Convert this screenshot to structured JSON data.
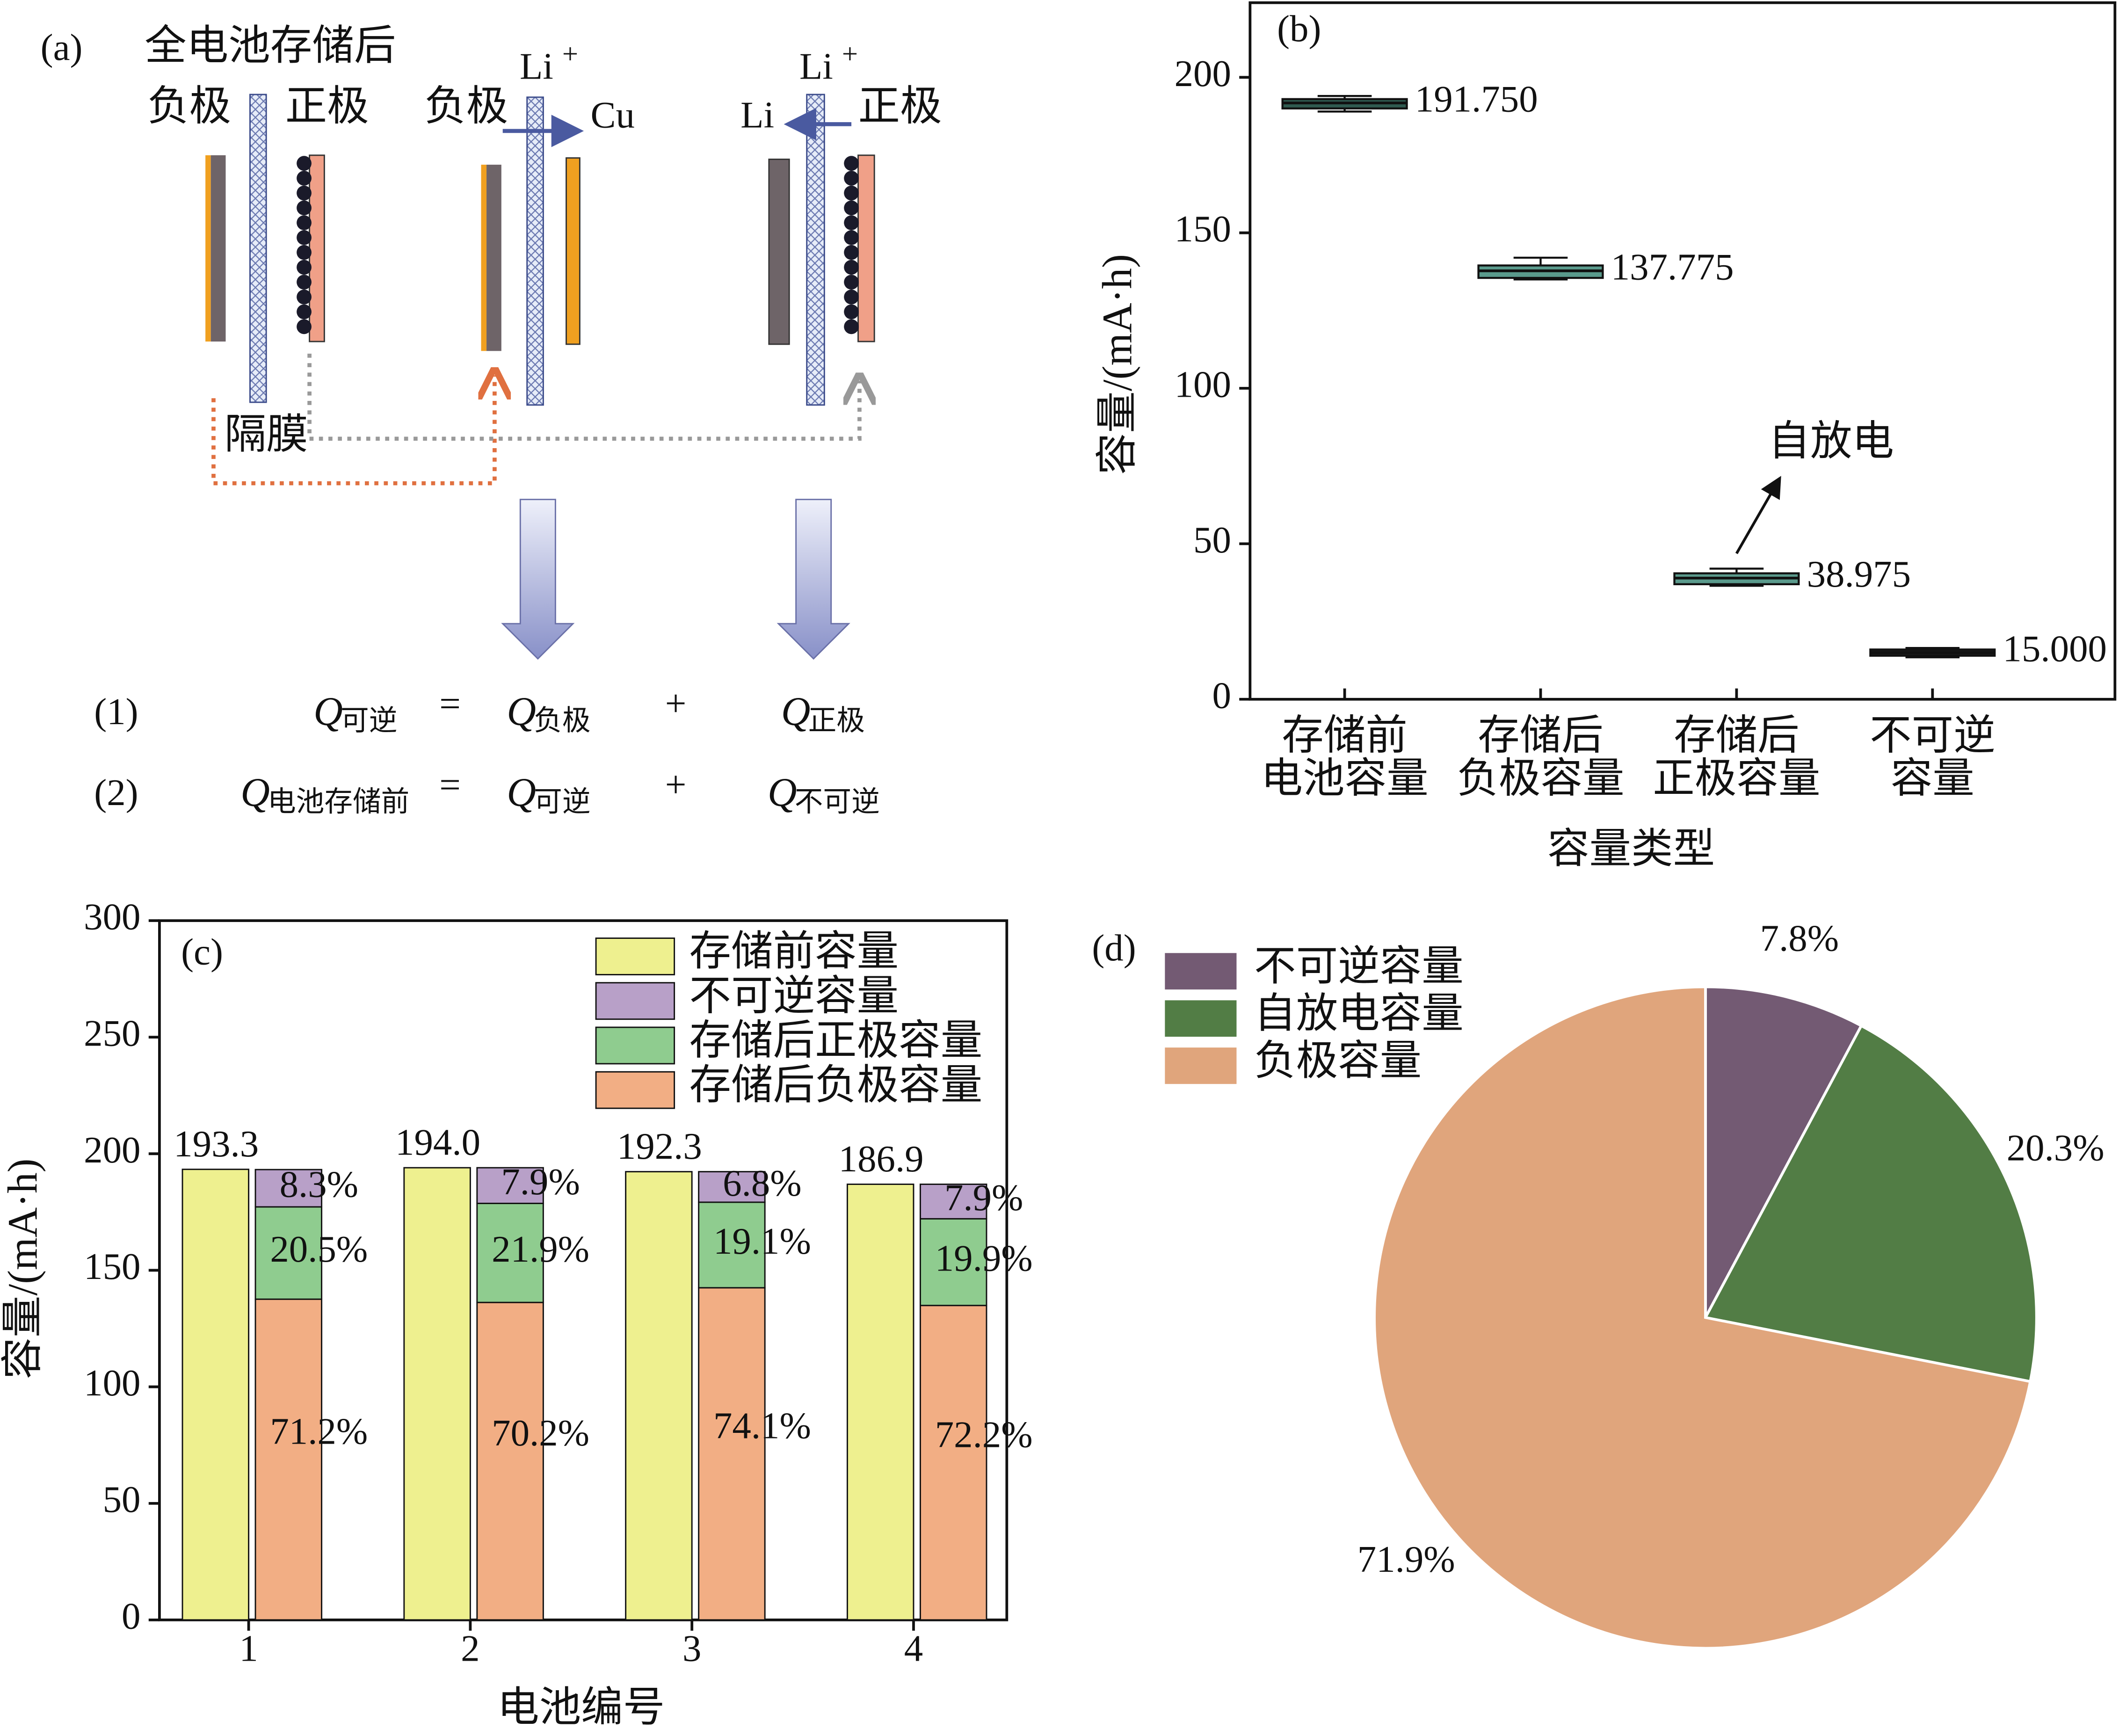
{
  "diagram": {
    "panel_label": "(a)",
    "title": "全电池存储后",
    "cells": [
      {
        "anode": "负极",
        "cathode": "正极"
      },
      {
        "anode": "负极",
        "ion": "Li",
        "ion_charge": "+",
        "product": "Cu"
      },
      {
        "ion": "Li",
        "ion_charge": "+",
        "product": "Li",
        "cathode": "正极"
      }
    ],
    "separator": "隔膜",
    "equations": [
      {
        "number": "(1)",
        "lhs": {
          "symbol": "Q",
          "sub": "可逆"
        },
        "op1": "=",
        "term1": {
          "symbol": "Q",
          "sub": "负极"
        },
        "op2": "+",
        "term2": {
          "symbol": "Q",
          "sub": "正极"
        }
      },
      {
        "number": "(2)",
        "lhs": {
          "symbol": "Q",
          "sub": "电池存储前"
        },
        "op1": "=",
        "term1": {
          "symbol": "Q",
          "sub": "可逆"
        },
        "op2": "+",
        "term2": {
          "symbol": "Q",
          "sub": "不可逆"
        }
      }
    ]
  },
  "chart_data": [
    {
      "type": "box",
      "panel_label": "(b)",
      "x_label": "容量类型",
      "y_label": "容量/(mA·h)",
      "categories": [
        [
          "存储前",
          "电池容量"
        ],
        [
          "存储后",
          "负极容量"
        ],
        [
          "存储后",
          "正极容量"
        ],
        [
          "不可逆",
          "容量"
        ]
      ],
      "values": [
        191.75,
        137.775,
        38.975,
        15.0
      ],
      "value_labels": [
        "191.750",
        "137.775",
        "38.975",
        "15.000"
      ],
      "q1": [
        190,
        135.5,
        37,
        14
      ],
      "q3": [
        193,
        139.5,
        40.5,
        16
      ],
      "whisker_low": [
        189,
        135,
        36.5,
        13.5
      ],
      "whisker_high": [
        194,
        142,
        42,
        16.5
      ],
      "colors": [
        "#2f5a50",
        "#5a9a8c",
        "#5a9a8c",
        "#1a1a1a"
      ],
      "annotation": "自放电",
      "ylim": [
        0,
        224
      ],
      "yticks": [
        0,
        50,
        100,
        150,
        200
      ]
    },
    {
      "type": "stacked_bar",
      "panel_label": "(c)",
      "x_label": "电池编号",
      "y_label": "容量/(mA·h)",
      "categories": [
        "1",
        "2",
        "3",
        "4"
      ],
      "total": {
        "name": "存储前容量",
        "color": "#eef08f",
        "values": [
          193.3,
          194.0,
          192.3,
          186.9
        ],
        "value_labels": [
          "193.3",
          "194.0",
          "192.3",
          "186.9"
        ]
      },
      "series": [
        {
          "name": "存储后负极容量",
          "color": "#f2ae84",
          "values": [
            137.6,
            136.2,
            142.5,
            134.9
          ],
          "share_labels": [
            "71.2%",
            "70.2%",
            "74.1%",
            "72.2%"
          ]
        },
        {
          "name": "存储后正极容量",
          "color": "#8fcc8f",
          "values": [
            39.6,
            42.5,
            36.7,
            37.2
          ],
          "share_labels": [
            "20.5%",
            "21.9%",
            "19.1%",
            "19.9%"
          ]
        },
        {
          "name": "不可逆容量",
          "color": "#b8a0c8",
          "values": [
            16.0,
            15.3,
            13.1,
            14.8
          ],
          "share_labels": [
            "8.3%",
            "7.9%",
            "6.8%",
            "7.9%"
          ]
        }
      ],
      "ylim": [
        0,
        300
      ],
      "yticks": [
        0,
        50,
        100,
        150,
        200,
        250,
        300
      ]
    },
    {
      "type": "pie",
      "panel_label": "(d)",
      "categories": [
        "不可逆容量",
        "自放电容量",
        "负极容量"
      ],
      "values": [
        7.8,
        20.3,
        71.9
      ],
      "value_labels": [
        "7.8%",
        "20.3%",
        "71.9%"
      ],
      "colors": [
        "#735a73",
        "#527d45",
        "#e0a57c"
      ],
      "legend": "upper left"
    }
  ]
}
